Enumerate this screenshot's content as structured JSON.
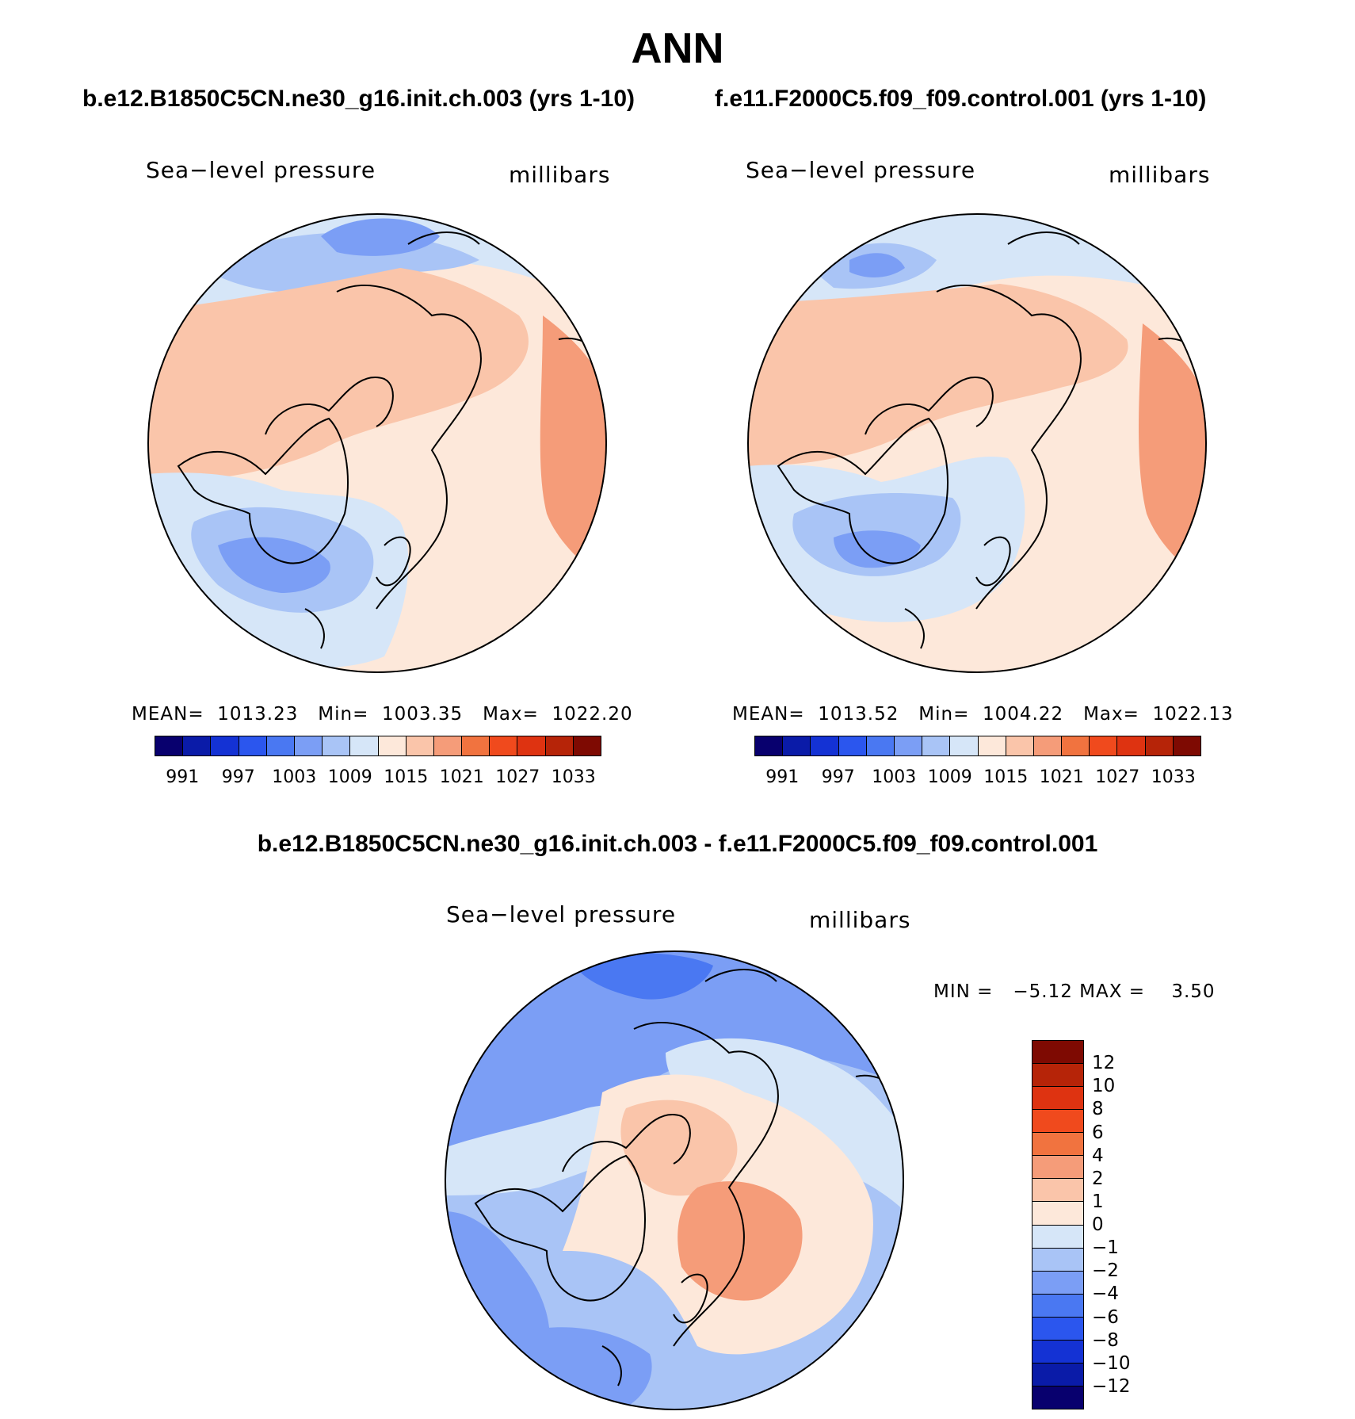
{
  "title": "ANN",
  "panels": {
    "left": {
      "case": "b.e12.B1850C5CN.ne30_g16.init.ch.003 (yrs 1-10)",
      "variable": "Sea−level pressure",
      "units": "millibars",
      "mean_label": "MEAN=",
      "mean": "1013.23",
      "min_label": "Min=",
      "min": "1003.35",
      "max_label": "Max=",
      "max": "1022.20"
    },
    "right": {
      "case": "f.e11.F2000C5.f09_f09.control.001 (yrs 1-10)",
      "variable": "Sea−level pressure",
      "units": "millibars",
      "mean_label": "MEAN=",
      "mean": "1013.52",
      "min_label": "Min=",
      "min": "1004.22",
      "max_label": "Max=",
      "max": "1022.13"
    },
    "diff": {
      "case": "b.e12.B1850C5CN.ne30_g16.init.ch.003 - f.e11.F2000C5.f09_f09.control.001",
      "variable": "Sea−level pressure",
      "units": "millibars",
      "min_label": "MIN =",
      "min": "−5.12",
      "max_label": "MAX =",
      "max": "3.50"
    }
  },
  "abs_colorbar": {
    "colors": [
      "#08006e",
      "#0a1ba8",
      "#1432d4",
      "#2b56ee",
      "#4a78f2",
      "#7b9ef5",
      "#a9c4f6",
      "#d6e6f8",
      "#fde8da",
      "#fac5aa",
      "#f59c79",
      "#f1733f",
      "#f04a1d",
      "#de3311",
      "#b62408",
      "#7e0a02"
    ],
    "ticks": [
      "991",
      "997",
      "1003",
      "1009",
      "1015",
      "1021",
      "1027",
      "1033"
    ]
  },
  "diff_colorbar": {
    "colors": [
      "#7e0a02",
      "#b62408",
      "#de3311",
      "#f04a1d",
      "#f1733f",
      "#f59c79",
      "#fac5aa",
      "#fde8da",
      "#d6e6f8",
      "#a9c4f6",
      "#7b9ef5",
      "#4a78f2",
      "#2b56ee",
      "#1432d4",
      "#0a1ba8",
      "#08006e"
    ],
    "ticks": [
      "12",
      "10",
      "8",
      "6",
      "4",
      "2",
      "1",
      "0",
      "−1",
      "−2",
      "−4",
      "−6",
      "−8",
      "−10",
      "−12"
    ]
  }
}
